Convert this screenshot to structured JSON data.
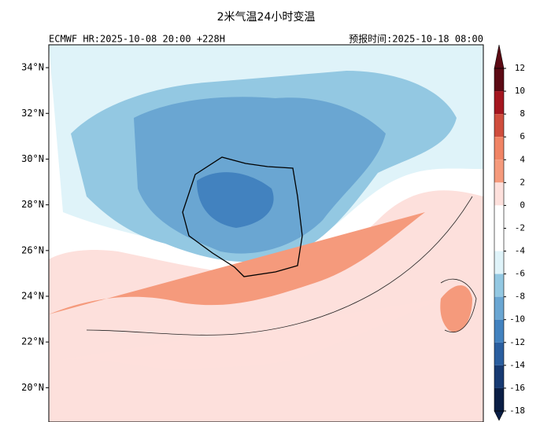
{
  "header": {
    "title": "2米气温24小时变温",
    "left": "ECMWF HR:2025-10-08 20:00 +228H",
    "right": "预报时间:2025-10-18 08:00"
  },
  "map": {
    "ylim": [
      18.5,
      35
    ],
    "lat_labels": [
      {
        "value": 34,
        "label": "34°N"
      },
      {
        "value": 32,
        "label": "32°N"
      },
      {
        "value": 30,
        "label": "30°N"
      },
      {
        "value": 28,
        "label": "28°N"
      },
      {
        "value": 26,
        "label": "26°N"
      },
      {
        "value": 24,
        "label": "24°N"
      },
      {
        "value": 22,
        "label": "22°N"
      },
      {
        "value": 20,
        "label": "20°N"
      }
    ]
  },
  "colorbar": {
    "ticks": [
      12,
      10,
      8,
      6,
      4,
      2,
      0,
      -2,
      -4,
      -6,
      -8,
      -10,
      -12,
      -14,
      -16,
      -18
    ],
    "colors": [
      "#5c0a14",
      "#a4161f",
      "#cf4d3d",
      "#f08465",
      "#f59a7c",
      "#fde0dc",
      "#ffffff",
      "#ffffff",
      "#dff3f9",
      "#93c8e2",
      "#6aa6d2",
      "#4282bf",
      "#2a5e9f",
      "#173a72",
      "#0a1e45"
    ]
  }
}
